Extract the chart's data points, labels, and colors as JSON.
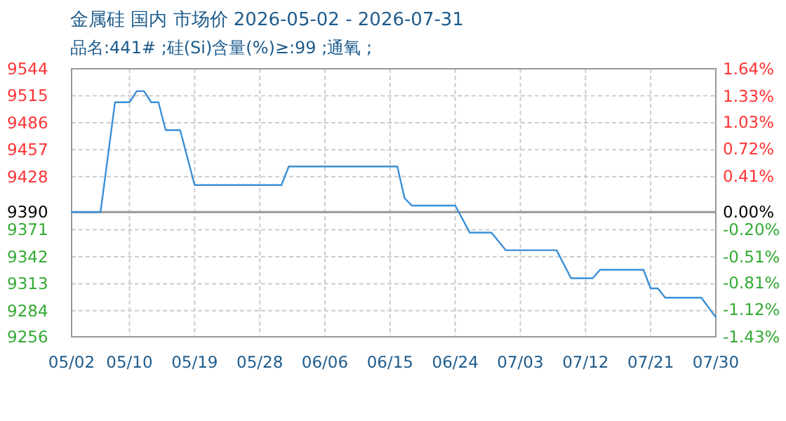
{
  "chart_data": {
    "type": "line",
    "title": "金属硅 国内 市场价 2026-05-02 - 2026-07-31",
    "subtitle": "品名:441# ;硅(Si)含量(%)≥:99 ;通氧 ;",
    "x": [
      "2026-05-02",
      "2026-05-06",
      "2026-05-08",
      "2026-05-10",
      "2026-05-11",
      "2026-05-12",
      "2026-05-13",
      "2026-05-14",
      "2026-05-15",
      "2026-05-17",
      "2026-05-19",
      "2026-05-31",
      "2026-06-01",
      "2026-06-16",
      "2026-06-17",
      "2026-06-18",
      "2026-06-24",
      "2026-06-26",
      "2026-06-29",
      "2026-07-01",
      "2026-07-08",
      "2026-07-10",
      "2026-07-13",
      "2026-07-14",
      "2026-07-20",
      "2026-07-21",
      "2026-07-22",
      "2026-07-23",
      "2026-07-28",
      "2026-07-30"
    ],
    "series": [
      {
        "color": "#3a8fd6",
        "values": [
          9390,
          9390,
          9508,
          9508,
          9520,
          9520,
          9508,
          9508,
          9478,
          9478,
          9419,
          9419,
          9439,
          9439,
          9405,
          9397,
          9397,
          9368,
          9368,
          9349,
          9349,
          9319,
          9319,
          9328,
          9328,
          9308,
          9308,
          9298,
          9298,
          9277
        ]
      }
    ],
    "xlim": [
      "2026-05-02",
      "2026-07-30"
    ],
    "xticks": [
      {
        "value": "2026-05-02",
        "label": "05/02"
      },
      {
        "value": "2026-05-10",
        "label": "05/10"
      },
      {
        "value": "2026-05-19",
        "label": "05/19"
      },
      {
        "value": "2026-05-28",
        "label": "05/28"
      },
      {
        "value": "2026-06-06",
        "label": "06/06"
      },
      {
        "value": "2026-06-15",
        "label": "06/15"
      },
      {
        "value": "2026-06-24",
        "label": "06/24"
      },
      {
        "value": "2026-07-03",
        "label": "07/03"
      },
      {
        "value": "2026-07-12",
        "label": "07/12"
      },
      {
        "value": "2026-07-21",
        "label": "07/21"
      },
      {
        "value": "2026-07-30",
        "label": "07/30"
      }
    ],
    "ylim": [
      9256,
      9544
    ],
    "yticks": [
      9256,
      9284,
      9313,
      9342,
      9371,
      9390,
      9428,
      9457,
      9486,
      9515,
      9544
    ],
    "y2lim": [
      -1.43,
      1.64
    ],
    "y2ticks": [
      {
        "value": -1.43,
        "label": "-1.43%"
      },
      {
        "value": -1.12,
        "label": "-1.12%"
      },
      {
        "value": -0.81,
        "label": "-0.81%"
      },
      {
        "value": -0.51,
        "label": "-0.51%"
      },
      {
        "value": -0.2,
        "label": "-0.20%"
      },
      {
        "value": 0,
        "label": "0.00%"
      },
      {
        "value": 0.41,
        "label": "0.41%"
      },
      {
        "value": 0.72,
        "label": "0.72%"
      },
      {
        "value": 1.03,
        "label": "1.03%"
      },
      {
        "value": 1.33,
        "label": "1.33%"
      },
      {
        "value": 1.64,
        "label": "1.64%"
      }
    ],
    "ref_lines": [
      {
        "axis": "y",
        "value": 9390,
        "color": "#999999"
      }
    ],
    "grid": true,
    "line_style": "solid",
    "marker": "none"
  }
}
